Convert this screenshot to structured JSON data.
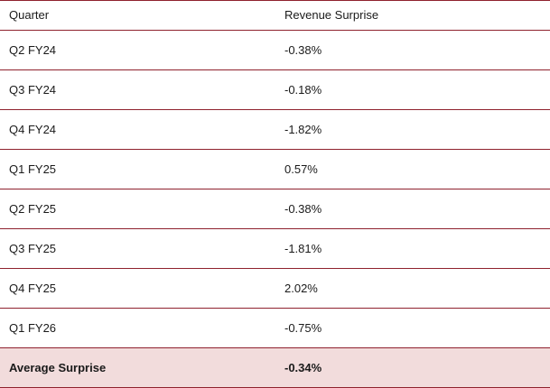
{
  "colors": {
    "border": "#8f222e",
    "average_row_bg": "#f2dcdc",
    "text": "#1a1a1a"
  },
  "chart_data": {
    "type": "table",
    "columns": [
      "Quarter",
      "Revenue Surprise"
    ],
    "rows": [
      [
        "Q2 FY24",
        "-0.38%"
      ],
      [
        "Q3 FY24",
        "-0.18%"
      ],
      [
        "Q4 FY24",
        "-1.82%"
      ],
      [
        "Q1 FY25",
        "0.57%"
      ],
      [
        "Q2 FY25",
        "-0.38%"
      ],
      [
        "Q3 FY25",
        "-1.81%"
      ],
      [
        "Q4 FY25",
        "2.02%"
      ],
      [
        "Q1 FY26",
        "-0.75%"
      ]
    ],
    "summary_row": [
      "Average Surprise",
      "-0.34%"
    ]
  }
}
